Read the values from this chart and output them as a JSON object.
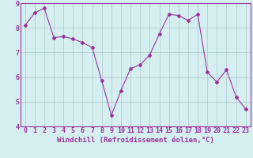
{
  "x": [
    0,
    1,
    2,
    3,
    4,
    5,
    6,
    7,
    8,
    9,
    10,
    11,
    12,
    13,
    14,
    15,
    16,
    17,
    18,
    19,
    20,
    21,
    22,
    23
  ],
  "y": [
    8.1,
    8.6,
    8.8,
    7.6,
    7.65,
    7.55,
    7.4,
    7.2,
    5.85,
    4.45,
    5.45,
    6.35,
    6.5,
    6.9,
    7.75,
    8.55,
    8.5,
    8.3,
    8.55,
    6.2,
    5.8,
    6.3,
    5.2,
    4.7
  ],
  "line_color": "#993399",
  "marker": "D",
  "marker_size": 2,
  "line_width": 0.8,
  "bg_color": "#d5eef0",
  "grid_color": "#b0c8cc",
  "xlabel": "Windchill (Refroidissement éolien,°C)",
  "xlabel_fontsize": 6.5,
  "tick_fontsize": 6,
  "ylim": [
    4,
    9
  ],
  "yticks": [
    4,
    5,
    6,
    7,
    8,
    9
  ],
  "xlim": [
    -0.5,
    23.5
  ],
  "xticks": [
    0,
    1,
    2,
    3,
    4,
    5,
    6,
    7,
    8,
    9,
    10,
    11,
    12,
    13,
    14,
    15,
    16,
    17,
    18,
    19,
    20,
    21,
    22,
    23
  ],
  "tick_color": "#993399",
  "label_color": "#993399",
  "spine_color": "#993399"
}
